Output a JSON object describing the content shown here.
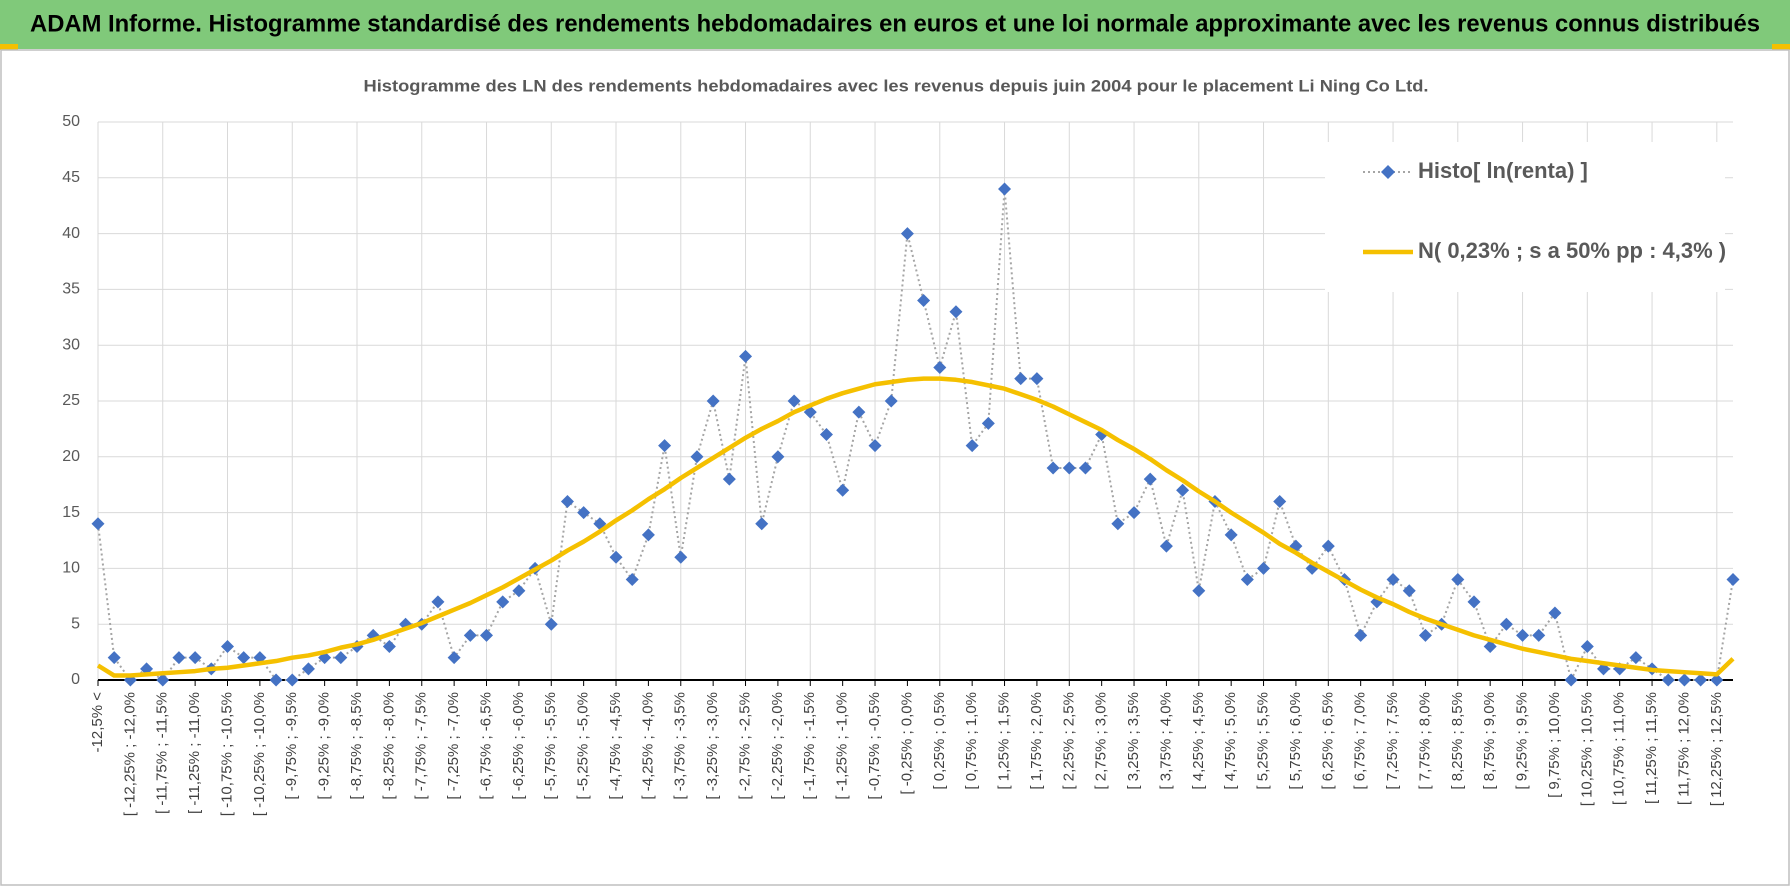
{
  "header": {
    "title": "ADAM Informe. Histogramme standardisé des rendements hebdomadaires en euros et une loi normale approximante avec les revenus connus distribués"
  },
  "chart_data": {
    "type": "line",
    "title": "Histogramme  des LN des rendements  hebdomadaires avec les revenus depuis juin 2004 pour le placement Li Ning Co Ltd.",
    "categories": [
      "-12,5% <",
      null,
      "[ -12,25% ; -12,0%",
      null,
      "[ -11,75% ; -11,5%",
      null,
      "[ -11,25% ; -11,0%",
      null,
      "[ -10,75% ; -10,5%",
      null,
      "[ -10,25% ; -10,0%",
      null,
      "[ -9,75% ; -9,5%",
      null,
      "[ -9,25% ; -9,0%",
      null,
      "[ -8,75% ; -8,5%",
      null,
      "[ -8,25% ; -8,0%",
      null,
      "[ -7,75% ; -7,5%",
      null,
      "[ -7,25% ; -7,0%",
      null,
      "[ -6,75% ; -6,5%",
      null,
      "[ -6,25% ; -6,0%",
      null,
      "[ -5,75% ; -5,5%",
      null,
      "[ -5,25% ; -5,0%",
      null,
      "[ -4,75% ; -4,5%",
      null,
      "[ -4,25% ; -4,0%",
      null,
      "[ -3,75% ; -3,5%",
      null,
      "[ -3,25% ; -3,0%",
      null,
      "[ -2,75% ; -2,5%",
      null,
      "[ -2,25% ; -2,0%",
      null,
      "[ -1,75% ; -1,5%",
      null,
      "[ -1,25% ; -1,0%",
      null,
      "[ -0,75% ; -0,5%",
      null,
      "[ -0,25% ; 0,0%",
      null,
      "[ 0,25% ; 0,5%",
      null,
      "[ 0,75% ; 1,0%",
      null,
      "[ 1,25% ; 1,5%",
      null,
      "[ 1,75% ; 2,0%",
      null,
      "[ 2,25% ; 2,5%",
      null,
      "[ 2,75% ; 3,0%",
      null,
      "[ 3,25% ; 3,5%",
      null,
      "[ 3,75% ; 4,0%",
      null,
      "[ 4,25% ; 4,5%",
      null,
      "[ 4,75% ; 5,0%",
      null,
      "[ 5,25% ; 5,5%",
      null,
      "[ 5,75% ; 6,0%",
      null,
      "[ 6,25% ; 6,5%",
      null,
      "[ 6,75% ; 7,0%",
      null,
      "[ 7,25% ; 7,5%",
      null,
      "[ 7,75% ; 8,0%",
      null,
      "[ 8,25% ; 8,5%",
      null,
      "[ 8,75% ; 9,0%",
      null,
      "[ 9,25% ; 9,5%",
      null,
      "[ 9,75% ; 10,0%",
      null,
      "[ 10,25% ; 10,5%",
      null,
      "[ 10,75% ; 11,0%",
      null,
      "[ 11,25% ; 11,5%",
      null,
      "[ 11,75% ; 12,0%",
      null,
      "[ 12,25% ; 12,5%",
      null
    ],
    "series": [
      {
        "name": "Histo[ ln(renta) ]",
        "color": "#4472c4",
        "line_color": "#a5a5a5",
        "values": [
          14,
          2,
          0,
          1,
          0,
          2,
          2,
          1,
          3,
          2,
          2,
          0,
          0,
          1,
          2,
          2,
          3,
          4,
          3,
          5,
          5,
          7,
          2,
          4,
          4,
          7,
          8,
          10,
          5,
          16,
          15,
          14,
          11,
          9,
          13,
          21,
          11,
          20,
          25,
          18,
          29,
          14,
          20,
          25,
          24,
          22,
          17,
          24,
          21,
          25,
          40,
          34,
          28,
          33,
          21,
          23,
          44,
          27,
          27,
          19,
          19,
          19,
          22,
          14,
          15,
          18,
          12,
          17,
          8,
          16,
          13,
          9,
          10,
          16,
          12,
          10,
          12,
          9,
          4,
          7,
          9,
          8,
          4,
          5,
          9,
          7,
          3,
          5,
          4,
          4,
          6,
          0,
          3,
          1,
          1,
          2,
          1,
          0,
          0,
          0,
          0,
          9
        ]
      },
      {
        "name": "N( 0,23% ; s a 50% pp : 4,3% )",
        "color": "#f5c000",
        "values": [
          1.3,
          0.4,
          0.4,
          0.5,
          0.6,
          0.7,
          0.8,
          1.0,
          1.1,
          1.3,
          1.5,
          1.7,
          2.0,
          2.2,
          2.5,
          2.9,
          3.2,
          3.6,
          4.1,
          4.6,
          5.1,
          5.7,
          6.3,
          6.9,
          7.6,
          8.3,
          9.1,
          9.9,
          10.7,
          11.6,
          12.4,
          13.3,
          14.3,
          15.2,
          16.2,
          17.1,
          18.1,
          19.0,
          19.9,
          20.8,
          21.7,
          22.5,
          23.2,
          24.0,
          24.6,
          25.2,
          25.7,
          26.1,
          26.5,
          26.7,
          26.9,
          27.0,
          27.0,
          26.9,
          26.7,
          26.4,
          26.1,
          25.6,
          25.1,
          24.5,
          23.8,
          23.1,
          22.4,
          21.5,
          20.7,
          19.8,
          18.8,
          17.9,
          16.9,
          16.0,
          15.0,
          14.1,
          13.2,
          12.2,
          11.4,
          10.5,
          9.7,
          8.9,
          8.1,
          7.4,
          6.8,
          6.1,
          5.5,
          5.0,
          4.5,
          4.0,
          3.6,
          3.2,
          2.8,
          2.5,
          2.2,
          1.9,
          1.7,
          1.5,
          1.3,
          1.1,
          0.9,
          0.8,
          0.7,
          0.6,
          0.5,
          1.9
        ]
      }
    ],
    "ylim": [
      0,
      50
    ],
    "yticks": [
      0,
      5,
      10,
      15,
      20,
      25,
      30,
      35,
      40,
      45,
      50
    ],
    "grid": true,
    "legend": "upper right"
  }
}
